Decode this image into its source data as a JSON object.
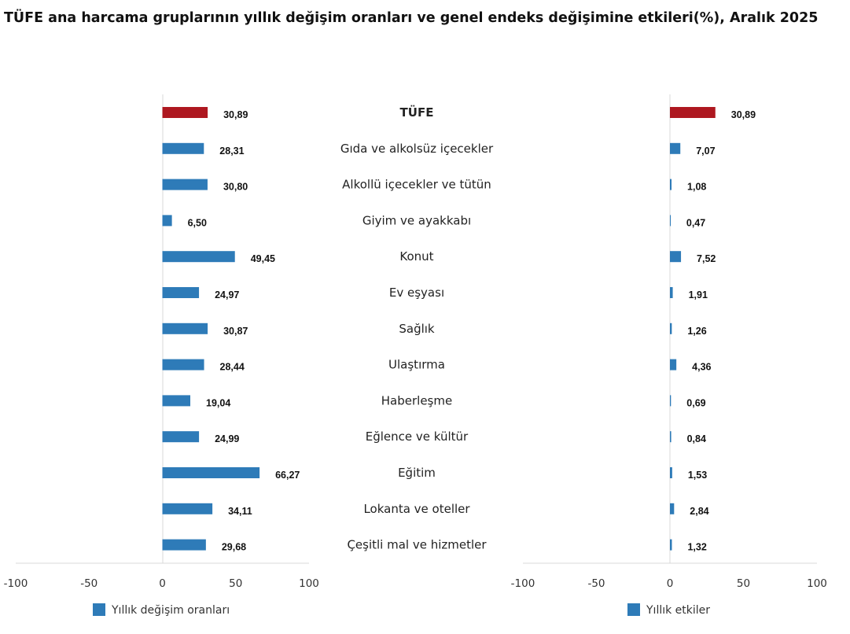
{
  "title": "TÜFE ana harcama gruplarının yıllık değişim oranları ve genel endeks değişimine etkileri(%), Aralık 2025",
  "chart_data": [
    {
      "type": "bar",
      "orientation": "horizontal",
      "categories": [
        "TÜFE",
        "Gıda ve alkolsüz içecekler",
        "Alkollü içecekler ve tütün",
        "Giyim ve ayakkabı",
        "Konut",
        "Ev eşyası",
        "Sağlık",
        "Ulaştırma",
        "Haberleşme",
        "Eğlence ve kültür",
        "Eğitim",
        "Lokanta ve oteller",
        "Çeşitli mal ve hizmetler"
      ],
      "series": [
        {
          "name": "Yıllık değişim oranları",
          "values": [
            30.89,
            28.31,
            30.8,
            6.5,
            49.45,
            24.97,
            30.87,
            28.44,
            19.04,
            24.99,
            66.27,
            34.11,
            29.68
          ],
          "labels": [
            "30,89",
            "28,31",
            "30,80",
            "6,50",
            "49,45",
            "24,97",
            "30,87",
            "28,44",
            "19,04",
            "24,99",
            "66,27",
            "34,11",
            "29,68"
          ]
        }
      ],
      "xlim": [
        -100,
        100
      ],
      "xticks": [
        "-100",
        "-50",
        "0",
        "50",
        "100"
      ],
      "legend": "bottom",
      "colors": {
        "highlight": "#ae1820",
        "default": "#2e7bb8"
      }
    },
    {
      "type": "bar",
      "orientation": "horizontal",
      "categories": [
        "TÜFE",
        "Gıda ve alkolsüz içecekler",
        "Alkollü içecekler ve tütün",
        "Giyim ve ayakkabı",
        "Konut",
        "Ev eşyası",
        "Sağlık",
        "Ulaştırma",
        "Haberleşme",
        "Eğlence ve kültür",
        "Eğitim",
        "Lokanta ve oteller",
        "Çeşitli mal ve hizmetler"
      ],
      "series": [
        {
          "name": "Yıllık etkiler",
          "values": [
            30.89,
            7.07,
            1.08,
            0.47,
            7.52,
            1.91,
            1.26,
            4.36,
            0.69,
            0.84,
            1.53,
            2.84,
            1.32
          ],
          "labels": [
            "30,89",
            "7,07",
            "1,08",
            "0,47",
            "7,52",
            "1,91",
            "1,26",
            "4,36",
            "0,69",
            "0,84",
            "1,53",
            "2,84",
            "1,32"
          ]
        }
      ],
      "xlim": [
        -100,
        100
      ],
      "xticks": [
        "-100",
        "-50",
        "0",
        "50",
        "100"
      ],
      "legend": "bottom",
      "colors": {
        "highlight": "#ae1820",
        "default": "#2e7bb8"
      }
    }
  ]
}
